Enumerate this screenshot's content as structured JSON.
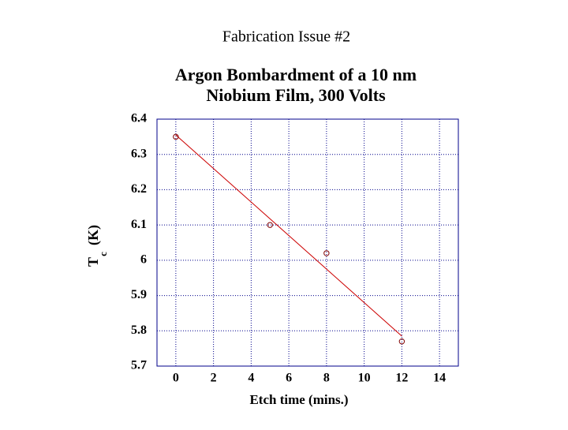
{
  "page_title": "Fabrication Issue #2",
  "chart_data": {
    "type": "scatter",
    "title": [
      "Argon Bombardment of a 10 nm",
      "Niobium Film, 300 Volts"
    ],
    "xlabel": "Etch time (mins.)",
    "ylabel": [
      "T",
      "c",
      "(K)"
    ],
    "x": [
      0,
      5,
      8,
      12
    ],
    "series": [
      {
        "color": "#800000",
        "values": [
          6.35,
          6.1,
          6.02,
          5.77
        ]
      }
    ],
    "fit": {
      "color": "#cc0000",
      "x": [
        0,
        12
      ],
      "values": [
        6.355,
        5.785
      ]
    },
    "xlim": [
      -1,
      15
    ],
    "xticks": [
      0,
      2,
      4,
      6,
      8,
      10,
      12,
      14
    ],
    "ylim": [
      5.7,
      6.4
    ],
    "yticks": [
      5.7,
      5.8,
      5.9,
      6,
      6.1,
      6.2,
      6.3,
      6.4
    ],
    "grid": true
  }
}
